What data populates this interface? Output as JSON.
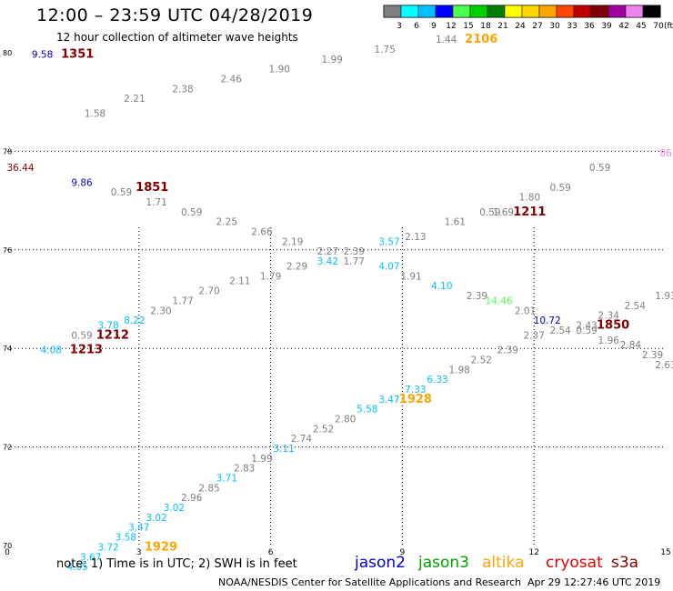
{
  "header": {
    "title": "12:00 – 23:59 UTC 04/28/2019",
    "subtitle": "12 hour collection of altimeter wave heights"
  },
  "colorbar": {
    "unit": "(ft)",
    "bins": [
      {
        "label": "3",
        "color": "#7f7f7f"
      },
      {
        "label": "6",
        "color": "#00ffff"
      },
      {
        "label": "9",
        "color": "#00bfff"
      },
      {
        "label": "12",
        "color": "#0000ff"
      },
      {
        "label": "15",
        "color": "#4dff4d"
      },
      {
        "label": "18",
        "color": "#00d000"
      },
      {
        "label": "21",
        "color": "#008000"
      },
      {
        "label": "24",
        "color": "#ffff00"
      },
      {
        "label": "27",
        "color": "#ffd700"
      },
      {
        "label": "30",
        "color": "#ffa500"
      },
      {
        "label": "33",
        "color": "#ff4500"
      },
      {
        "label": "36",
        "color": "#c00000"
      },
      {
        "label": "39",
        "color": "#800000"
      },
      {
        "label": "42",
        "color": "#a000a0"
      },
      {
        "label": "45",
        "color": "#ee82ee"
      },
      {
        "label": "70",
        "color": "#000000"
      }
    ]
  },
  "footer": {
    "note": "note:  1) Time is in UTC;  2) SWH is in feet",
    "credit": "NOAA/NESDIS Center for Satellite Applications and Research",
    "timestamp": "Apr 29 12:27:46 UTC 2019"
  },
  "satellites": [
    {
      "name": "jason2",
      "color": "#0000cd"
    },
    {
      "name": "jason3",
      "color": "#00a000"
    },
    {
      "name": "altika",
      "color": "#ffa500"
    },
    {
      "name": "cryosat",
      "color": "#e00000"
    },
    {
      "name": "s3a",
      "color": "#800000"
    }
  ],
  "chart_data": {
    "type": "scatter",
    "x_ticks": [
      "0",
      "3",
      "6",
      "9",
      "12",
      "15"
    ],
    "y_ticks": [
      "70",
      "72",
      "74",
      "76",
      "78",
      "80"
    ],
    "xlim": [
      0,
      15
    ],
    "ylim": [
      70,
      80
    ],
    "values": [
      {
        "x": 0.8,
        "y": 79.9,
        "t": "9.58",
        "c": "#0000cd"
      },
      {
        "x": 0.3,
        "y": 77.6,
        "t": "36.44",
        "c": "#800000"
      },
      {
        "x": 1.7,
        "y": 77.3,
        "t": "9.86",
        "c": "#0000cd"
      },
      {
        "x": 2.0,
        "y": 78.7,
        "t": "1.58",
        "c": "#7f7f7f"
      },
      {
        "x": 2.9,
        "y": 79.0,
        "t": "2.21",
        "c": "#7f7f7f"
      },
      {
        "x": 4.0,
        "y": 79.2,
        "t": "2.38",
        "c": "#7f7f7f"
      },
      {
        "x": 5.1,
        "y": 79.4,
        "t": "2.46",
        "c": "#7f7f7f"
      },
      {
        "x": 6.2,
        "y": 79.6,
        "t": "1.90",
        "c": "#7f7f7f"
      },
      {
        "x": 7.4,
        "y": 79.8,
        "t": "1.99",
        "c": "#7f7f7f"
      },
      {
        "x": 8.6,
        "y": 80.0,
        "t": "1.75",
        "c": "#7f7f7f"
      },
      {
        "x": 10.0,
        "y": 80.2,
        "t": "1.44",
        "c": "#7f7f7f"
      },
      {
        "x": 2.6,
        "y": 77.1,
        "t": "0.59",
        "c": "#7f7f7f"
      },
      {
        "x": 3.4,
        "y": 76.9,
        "t": "1.71",
        "c": "#7f7f7f"
      },
      {
        "x": 4.2,
        "y": 76.7,
        "t": "0.59",
        "c": "#7f7f7f"
      },
      {
        "x": 5.0,
        "y": 76.5,
        "t": "2.25",
        "c": "#7f7f7f"
      },
      {
        "x": 5.8,
        "y": 76.3,
        "t": "2.66",
        "c": "#7f7f7f"
      },
      {
        "x": 6.5,
        "y": 76.1,
        "t": "2.19",
        "c": "#7f7f7f"
      },
      {
        "x": 7.3,
        "y": 75.9,
        "t": "2.27",
        "c": "#7f7f7f"
      },
      {
        "x": 7.9,
        "y": 75.9,
        "t": "2.39",
        "c": "#7f7f7f"
      },
      {
        "x": 9.3,
        "y": 76.2,
        "t": "2.13",
        "c": "#7f7f7f"
      },
      {
        "x": 10.2,
        "y": 76.5,
        "t": "1.61",
        "c": "#7f7f7f"
      },
      {
        "x": 11.0,
        "y": 76.7,
        "t": "0.59",
        "c": "#7f7f7f"
      },
      {
        "x": 11.3,
        "y": 76.7,
        "t": "1.69",
        "c": "#7f7f7f"
      },
      {
        "x": 11.9,
        "y": 77.0,
        "t": "1.80",
        "c": "#7f7f7f"
      },
      {
        "x": 12.6,
        "y": 77.2,
        "t": "0.59",
        "c": "#7f7f7f"
      },
      {
        "x": 13.5,
        "y": 77.6,
        "t": "0.59",
        "c": "#7f7f7f"
      },
      {
        "x": 15.0,
        "y": 77.9,
        "t": "86",
        "c": "#ee82ee"
      },
      {
        "x": 8.7,
        "y": 76.1,
        "t": "3.57",
        "c": "#00bfff"
      },
      {
        "x": 7.3,
        "y": 75.7,
        "t": "3.42",
        "c": "#00bfff"
      },
      {
        "x": 7.9,
        "y": 75.7,
        "t": "1.77",
        "c": "#7f7f7f"
      },
      {
        "x": 6.6,
        "y": 75.6,
        "t": "2.29",
        "c": "#7f7f7f"
      },
      {
        "x": 8.7,
        "y": 75.6,
        "t": "4.07",
        "c": "#00bfff"
      },
      {
        "x": 6.0,
        "y": 75.4,
        "t": "1.79",
        "c": "#7f7f7f"
      },
      {
        "x": 9.2,
        "y": 75.4,
        "t": "1.91",
        "c": "#7f7f7f"
      },
      {
        "x": 5.3,
        "y": 75.3,
        "t": "2.11",
        "c": "#7f7f7f"
      },
      {
        "x": 9.9,
        "y": 75.2,
        "t": "4.10",
        "c": "#00bfff"
      },
      {
        "x": 4.6,
        "y": 75.1,
        "t": "2.70",
        "c": "#7f7f7f"
      },
      {
        "x": 10.7,
        "y": 75.0,
        "t": "2.39",
        "c": "#7f7f7f"
      },
      {
        "x": 4.0,
        "y": 74.9,
        "t": "1.77",
        "c": "#7f7f7f"
      },
      {
        "x": 11.2,
        "y": 74.9,
        "t": "14.46",
        "c": "#4dff4d"
      },
      {
        "x": 3.5,
        "y": 74.7,
        "t": "2.30",
        "c": "#7f7f7f"
      },
      {
        "x": 11.8,
        "y": 74.7,
        "t": "2.01",
        "c": "#7f7f7f"
      },
      {
        "x": 2.9,
        "y": 74.5,
        "t": "8.22",
        "c": "#00bfff"
      },
      {
        "x": 12.3,
        "y": 74.5,
        "t": "10.72",
        "c": "#0000cd"
      },
      {
        "x": 2.3,
        "y": 74.4,
        "t": "3.78",
        "c": "#00bfff"
      },
      {
        "x": 1.7,
        "y": 74.2,
        "t": "0.59",
        "c": "#7f7f7f"
      },
      {
        "x": 1.0,
        "y": 73.9,
        "t": "4.08",
        "c": "#00bfff"
      },
      {
        "x": 13.2,
        "y": 74.4,
        "t": "2.43",
        "c": "#7f7f7f"
      },
      {
        "x": 13.7,
        "y": 74.6,
        "t": "2.34",
        "c": "#7f7f7f"
      },
      {
        "x": 14.3,
        "y": 74.8,
        "t": "2.54",
        "c": "#7f7f7f"
      },
      {
        "x": 15.0,
        "y": 75.0,
        "t": "1.93",
        "c": "#7f7f7f"
      },
      {
        "x": 12.6,
        "y": 74.3,
        "t": "2.54",
        "c": "#7f7f7f"
      },
      {
        "x": 13.2,
        "y": 74.3,
        "t": "0.59",
        "c": "#7f7f7f"
      },
      {
        "x": 13.7,
        "y": 74.1,
        "t": "1.96",
        "c": "#7f7f7f"
      },
      {
        "x": 14.2,
        "y": 74.0,
        "t": "2.84",
        "c": "#7f7f7f"
      },
      {
        "x": 14.7,
        "y": 73.8,
        "t": "2.39",
        "c": "#7f7f7f"
      },
      {
        "x": 15.0,
        "y": 73.6,
        "t": "2.63",
        "c": "#7f7f7f"
      },
      {
        "x": 12.0,
        "y": 74.2,
        "t": "2.37",
        "c": "#7f7f7f"
      },
      {
        "x": 11.4,
        "y": 73.9,
        "t": "2.39",
        "c": "#7f7f7f"
      },
      {
        "x": 10.8,
        "y": 73.7,
        "t": "2.52",
        "c": "#7f7f7f"
      },
      {
        "x": 10.3,
        "y": 73.5,
        "t": "1.98",
        "c": "#7f7f7f"
      },
      {
        "x": 9.8,
        "y": 73.3,
        "t": "6.33",
        "c": "#00bfff"
      },
      {
        "x": 9.3,
        "y": 73.1,
        "t": "7.33",
        "c": "#00bfff"
      },
      {
        "x": 8.7,
        "y": 72.9,
        "t": "3.47",
        "c": "#00bfff"
      },
      {
        "x": 8.2,
        "y": 72.7,
        "t": "5.58",
        "c": "#00bfff"
      },
      {
        "x": 7.7,
        "y": 72.5,
        "t": "2.80",
        "c": "#7f7f7f"
      },
      {
        "x": 7.2,
        "y": 72.3,
        "t": "2.52",
        "c": "#7f7f7f"
      },
      {
        "x": 6.7,
        "y": 72.1,
        "t": "2.74",
        "c": "#7f7f7f"
      },
      {
        "x": 6.3,
        "y": 71.9,
        "t": "3.11",
        "c": "#00bfff"
      },
      {
        "x": 5.8,
        "y": 71.7,
        "t": "1.99",
        "c": "#7f7f7f"
      },
      {
        "x": 5.4,
        "y": 71.5,
        "t": "2.83",
        "c": "#7f7f7f"
      },
      {
        "x": 5.0,
        "y": 71.3,
        "t": "3.71",
        "c": "#00bfff"
      },
      {
        "x": 4.6,
        "y": 71.1,
        "t": "2.85",
        "c": "#7f7f7f"
      },
      {
        "x": 4.2,
        "y": 70.9,
        "t": "2.96",
        "c": "#7f7f7f"
      },
      {
        "x": 3.8,
        "y": 70.7,
        "t": "3.02",
        "c": "#00bfff"
      },
      {
        "x": 3.4,
        "y": 70.5,
        "t": "3.02",
        "c": "#00bfff"
      },
      {
        "x": 3.0,
        "y": 70.3,
        "t": "3.47",
        "c": "#00bfff"
      },
      {
        "x": 2.7,
        "y": 70.1,
        "t": "3.58",
        "c": "#00bfff"
      },
      {
        "x": 2.3,
        "y": 69.9,
        "t": "3.72",
        "c": "#00bfff"
      },
      {
        "x": 1.9,
        "y": 69.7,
        "t": "3.67",
        "c": "#00bfff"
      },
      {
        "x": 1.6,
        "y": 69.5,
        "t": "4.05",
        "c": "#00bfff"
      }
    ],
    "track_labels": [
      {
        "x": 1.6,
        "y": 79.9,
        "t": "1351",
        "c": "#800000"
      },
      {
        "x": 10.8,
        "y": 80.2,
        "t": "2106",
        "c": "#ffa500"
      },
      {
        "x": 3.3,
        "y": 77.2,
        "t": "1851",
        "c": "#800000"
      },
      {
        "x": 11.9,
        "y": 76.7,
        "t": "1211",
        "c": "#800000"
      },
      {
        "x": 2.4,
        "y": 74.2,
        "t": "1212",
        "c": "#800000"
      },
      {
        "x": 1.8,
        "y": 73.9,
        "t": "1213",
        "c": "#800000"
      },
      {
        "x": 13.8,
        "y": 74.4,
        "t": "1850",
        "c": "#800000"
      },
      {
        "x": 9.3,
        "y": 72.9,
        "t": "1928",
        "c": "#ffa500"
      },
      {
        "x": 3.5,
        "y": 69.9,
        "t": "1929",
        "c": "#ffa500"
      }
    ]
  }
}
